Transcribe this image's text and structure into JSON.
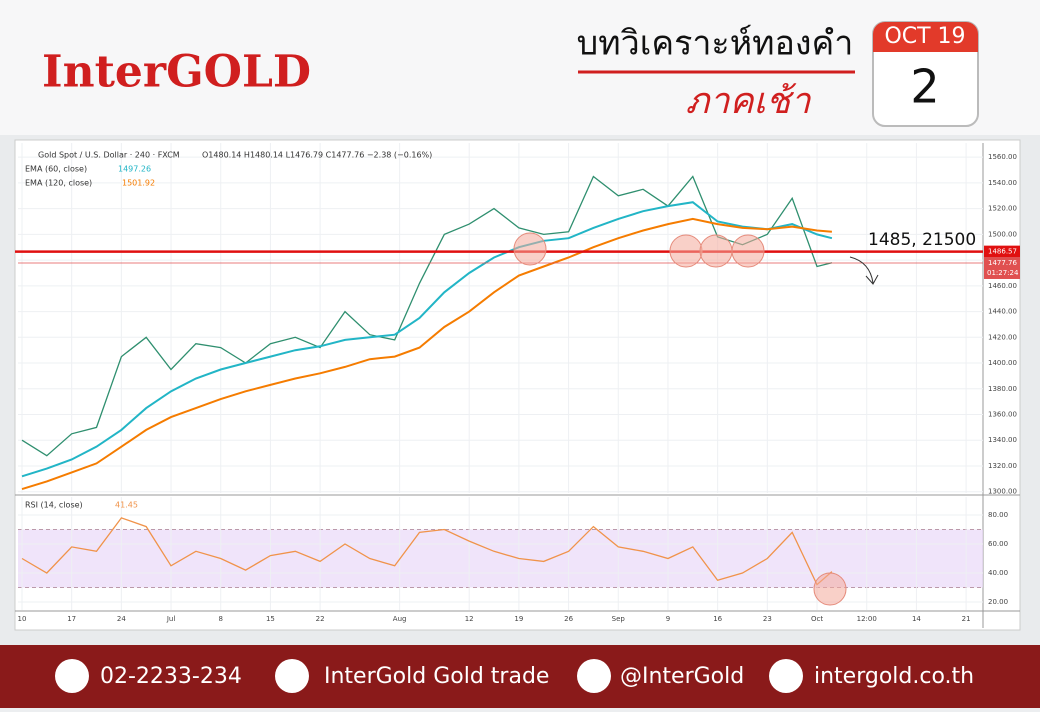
{
  "header": {
    "logo": "InterGOLD",
    "title": "บทวิเคราะห์ทองคำ",
    "subtitle": "ภาคเช้า",
    "calendar_month": "OCT 19",
    "calendar_day": "2"
  },
  "chart_data": [
    {
      "type": "line",
      "title": "Gold Spot / U.S. Dollar · 240 · FXCM",
      "ohlc": "O1480.14 H1480.14 L1476.79 C1477.76 −2.38 (−0.16%)",
      "x": [
        0,
        0.5,
        1,
        1.5,
        2,
        2.5,
        3,
        3.5,
        4,
        4.5,
        5,
        5.5,
        6,
        6.5,
        7,
        7.5,
        8,
        8.5,
        9,
        9.5,
        10,
        10.5,
        11,
        11.5,
        12,
        12.5,
        13,
        13.5,
        14,
        14.5,
        15,
        15.5,
        16,
        16.3
      ],
      "series": [
        {
          "name": "Gold Spot / U.S. Dollar · 240 · FXCM",
          "color": "#2f8f6f",
          "values": [
            1340,
            1328,
            1345,
            1350,
            1405,
            1420,
            1395,
            1415,
            1412,
            1400,
            1415,
            1420,
            1412,
            1440,
            1422,
            1418,
            1462,
            1500,
            1508,
            1520,
            1505,
            1500,
            1502,
            1545,
            1530,
            1535,
            1522,
            1545,
            1498,
            1492,
            1500,
            1528,
            1475,
            1478
          ]
        },
        {
          "name": "EMA (60, close)",
          "last": "1497.26",
          "color": "#22b5c6",
          "values": [
            1312,
            1318,
            1325,
            1335,
            1348,
            1365,
            1378,
            1388,
            1395,
            1400,
            1405,
            1410,
            1413,
            1418,
            1420,
            1422,
            1435,
            1455,
            1470,
            1482,
            1490,
            1495,
            1497,
            1505,
            1512,
            1518,
            1522,
            1525,
            1510,
            1506,
            1504,
            1508,
            1500,
            1497
          ]
        },
        {
          "name": "EMA (120, close)",
          "last": "1501.92",
          "color": "#f57c00",
          "values": [
            1302,
            1308,
            1315,
            1322,
            1335,
            1348,
            1358,
            1365,
            1372,
            1378,
            1383,
            1388,
            1392,
            1397,
            1403,
            1405,
            1412,
            1428,
            1440,
            1455,
            1468,
            1475,
            1482,
            1490,
            1497,
            1503,
            1508,
            1512,
            1508,
            1505,
            1504,
            1506,
            1503,
            1502
          ]
        }
      ],
      "ylim": [
        1299,
        1571
      ],
      "yticks": [
        {
          "value": 1300,
          "label": "1300.00"
        },
        {
          "value": 1320,
          "label": "1320.00"
        },
        {
          "value": 1340,
          "label": "1340.00"
        },
        {
          "value": 1360,
          "label": "1360.00"
        },
        {
          "value": 1380,
          "label": "1380.00"
        },
        {
          "value": 1400,
          "label": "1400.00"
        },
        {
          "value": 1420,
          "label": "1420.00"
        },
        {
          "value": 1440,
          "label": "1440.00"
        },
        {
          "value": 1460,
          "label": "1460.00"
        },
        {
          "value": 1480,
          "label": "1480.00"
        },
        {
          "value": 1500,
          "label": "1500.00"
        },
        {
          "value": 1520,
          "label": "1520.00"
        },
        {
          "value": 1540,
          "label": "1540.00"
        },
        {
          "value": 1560,
          "label": "1560.00"
        }
      ],
      "level": {
        "value": 1486.57,
        "label": "1486.57",
        "color": "#e01010"
      },
      "last_price": {
        "value": 1477.76,
        "label": "1477.76"
      },
      "countdown": "01:27:24",
      "annotation": "1485, 21500",
      "grid": true
    },
    {
      "type": "line",
      "title": "RSI (14, close)",
      "x": [
        0,
        0.5,
        1,
        1.5,
        2,
        2.5,
        3,
        3.5,
        4,
        4.5,
        5,
        5.5,
        6,
        6.5,
        7,
        7.5,
        8,
        8.5,
        9,
        9.5,
        10,
        10.5,
        11,
        11.5,
        12,
        12.5,
        13,
        13.5,
        14,
        14.5,
        15,
        15.5,
        16,
        16.3
      ],
      "series": [
        {
          "name": "RSI (14, close)",
          "last": "41.45",
          "color": "#f0934a",
          "values": [
            50,
            40,
            58,
            55,
            78,
            72,
            45,
            55,
            50,
            42,
            52,
            55,
            48,
            60,
            50,
            45,
            68,
            70,
            62,
            55,
            50,
            48,
            55,
            72,
            58,
            55,
            50,
            58,
            35,
            40,
            50,
            68,
            32,
            41
          ]
        }
      ],
      "band": [
        30,
        70
      ],
      "ylim": [
        14.5,
        92.4
      ],
      "yticks": [
        {
          "value": 20,
          "label": "20.00"
        },
        {
          "value": 40,
          "label": "40.00"
        },
        {
          "value": 60,
          "label": "60.00"
        },
        {
          "value": 80,
          "label": "80.00"
        }
      ],
      "xlim": [
        -0.08,
        19.34
      ],
      "xticks": [
        {
          "value": 0,
          "label": "10"
        },
        {
          "value": 1,
          "label": "17"
        },
        {
          "value": 2,
          "label": "24"
        },
        {
          "value": 3,
          "label": "Jul"
        },
        {
          "value": 4,
          "label": "8"
        },
        {
          "value": 5,
          "label": "15"
        },
        {
          "value": 6,
          "label": "22"
        },
        {
          "value": 7.6,
          "label": "Aug"
        },
        {
          "value": 9,
          "label": "12"
        },
        {
          "value": 10,
          "label": "19"
        },
        {
          "value": 11,
          "label": "26"
        },
        {
          "value": 12,
          "label": "Sep"
        },
        {
          "value": 13,
          "label": "9"
        },
        {
          "value": 14,
          "label": "16"
        },
        {
          "value": 15,
          "label": "23"
        },
        {
          "value": 16,
          "label": "Oct"
        },
        {
          "value": 17,
          "label": "12:00"
        },
        {
          "value": 18,
          "label": "14"
        },
        {
          "value": 19,
          "label": "21"
        }
      ],
      "grid": true
    }
  ],
  "footer": {
    "phone": "02-2233-234",
    "facebook": "InterGold Gold trade",
    "line": "@InterGold",
    "website": "intergold.co.th"
  }
}
